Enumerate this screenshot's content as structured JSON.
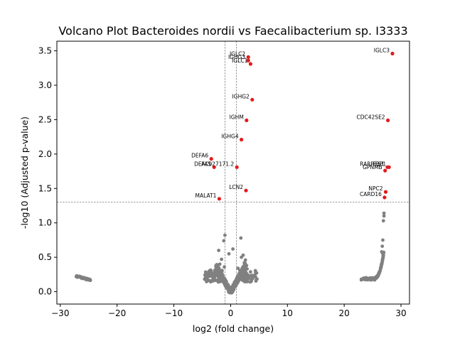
{
  "chart_data": {
    "type": "scatter",
    "title": "Volcano Plot Bacteroides nordii vs Faecalibacterium sp. I3333",
    "xlabel": "log2 (fold change)",
    "ylabel": "-log10 (Adjusted p-value)",
    "xlim": [
      -30.6,
      31.5
    ],
    "ylim": [
      -0.18,
      3.64
    ],
    "xticks": [
      -30,
      -20,
      -10,
      0,
      10,
      20,
      30
    ],
    "yticks": [
      0.0,
      0.5,
      1.0,
      1.5,
      2.0,
      2.5,
      3.0,
      3.5
    ],
    "thresholds": {
      "x": [
        -1,
        1
      ],
      "y": 1.3
    },
    "colors": {
      "significant": "#e31a1c",
      "nonsignificant": "#808080",
      "threshold_line": "#808080"
    },
    "significant": [
      {
        "label": "IGLC3",
        "x": 28.5,
        "y": 3.46
      },
      {
        "label": "IGLC2",
        "x": 3.1,
        "y": 3.41
      },
      {
        "label": "IGHG3",
        "x": 3.1,
        "y": 3.36
      },
      {
        "label": "IGLC1",
        "x": 3.5,
        "y": 3.31
      },
      {
        "label": "IGHG2",
        "x": 3.8,
        "y": 2.79
      },
      {
        "label": "IGHM",
        "x": 2.8,
        "y": 2.49
      },
      {
        "label": "CDC42SE2",
        "x": 27.7,
        "y": 2.49
      },
      {
        "label": "IGHG4",
        "x": 1.9,
        "y": 2.21
      },
      {
        "label": "DEFA6",
        "x": -3.4,
        "y": 1.93
      },
      {
        "label": "DEFA5",
        "x": -2.9,
        "y": 1.81
      },
      {
        "label": "AC027171.2",
        "x": 1.1,
        "y": 1.81
      },
      {
        "label": "RARRES1",
        "x": 27.6,
        "y": 1.81
      },
      {
        "label": "FBP1",
        "x": 27.9,
        "y": 1.81
      },
      {
        "label": "GPNMB",
        "x": 27.2,
        "y": 1.76
      },
      {
        "label": "LCN2",
        "x": 2.7,
        "y": 1.47
      },
      {
        "label": "NPC2",
        "x": 27.3,
        "y": 1.45
      },
      {
        "label": "CARD16",
        "x": 27.1,
        "y": 1.37
      },
      {
        "label": "MALAT1",
        "x": -2.0,
        "y": 1.35
      }
    ]
  }
}
